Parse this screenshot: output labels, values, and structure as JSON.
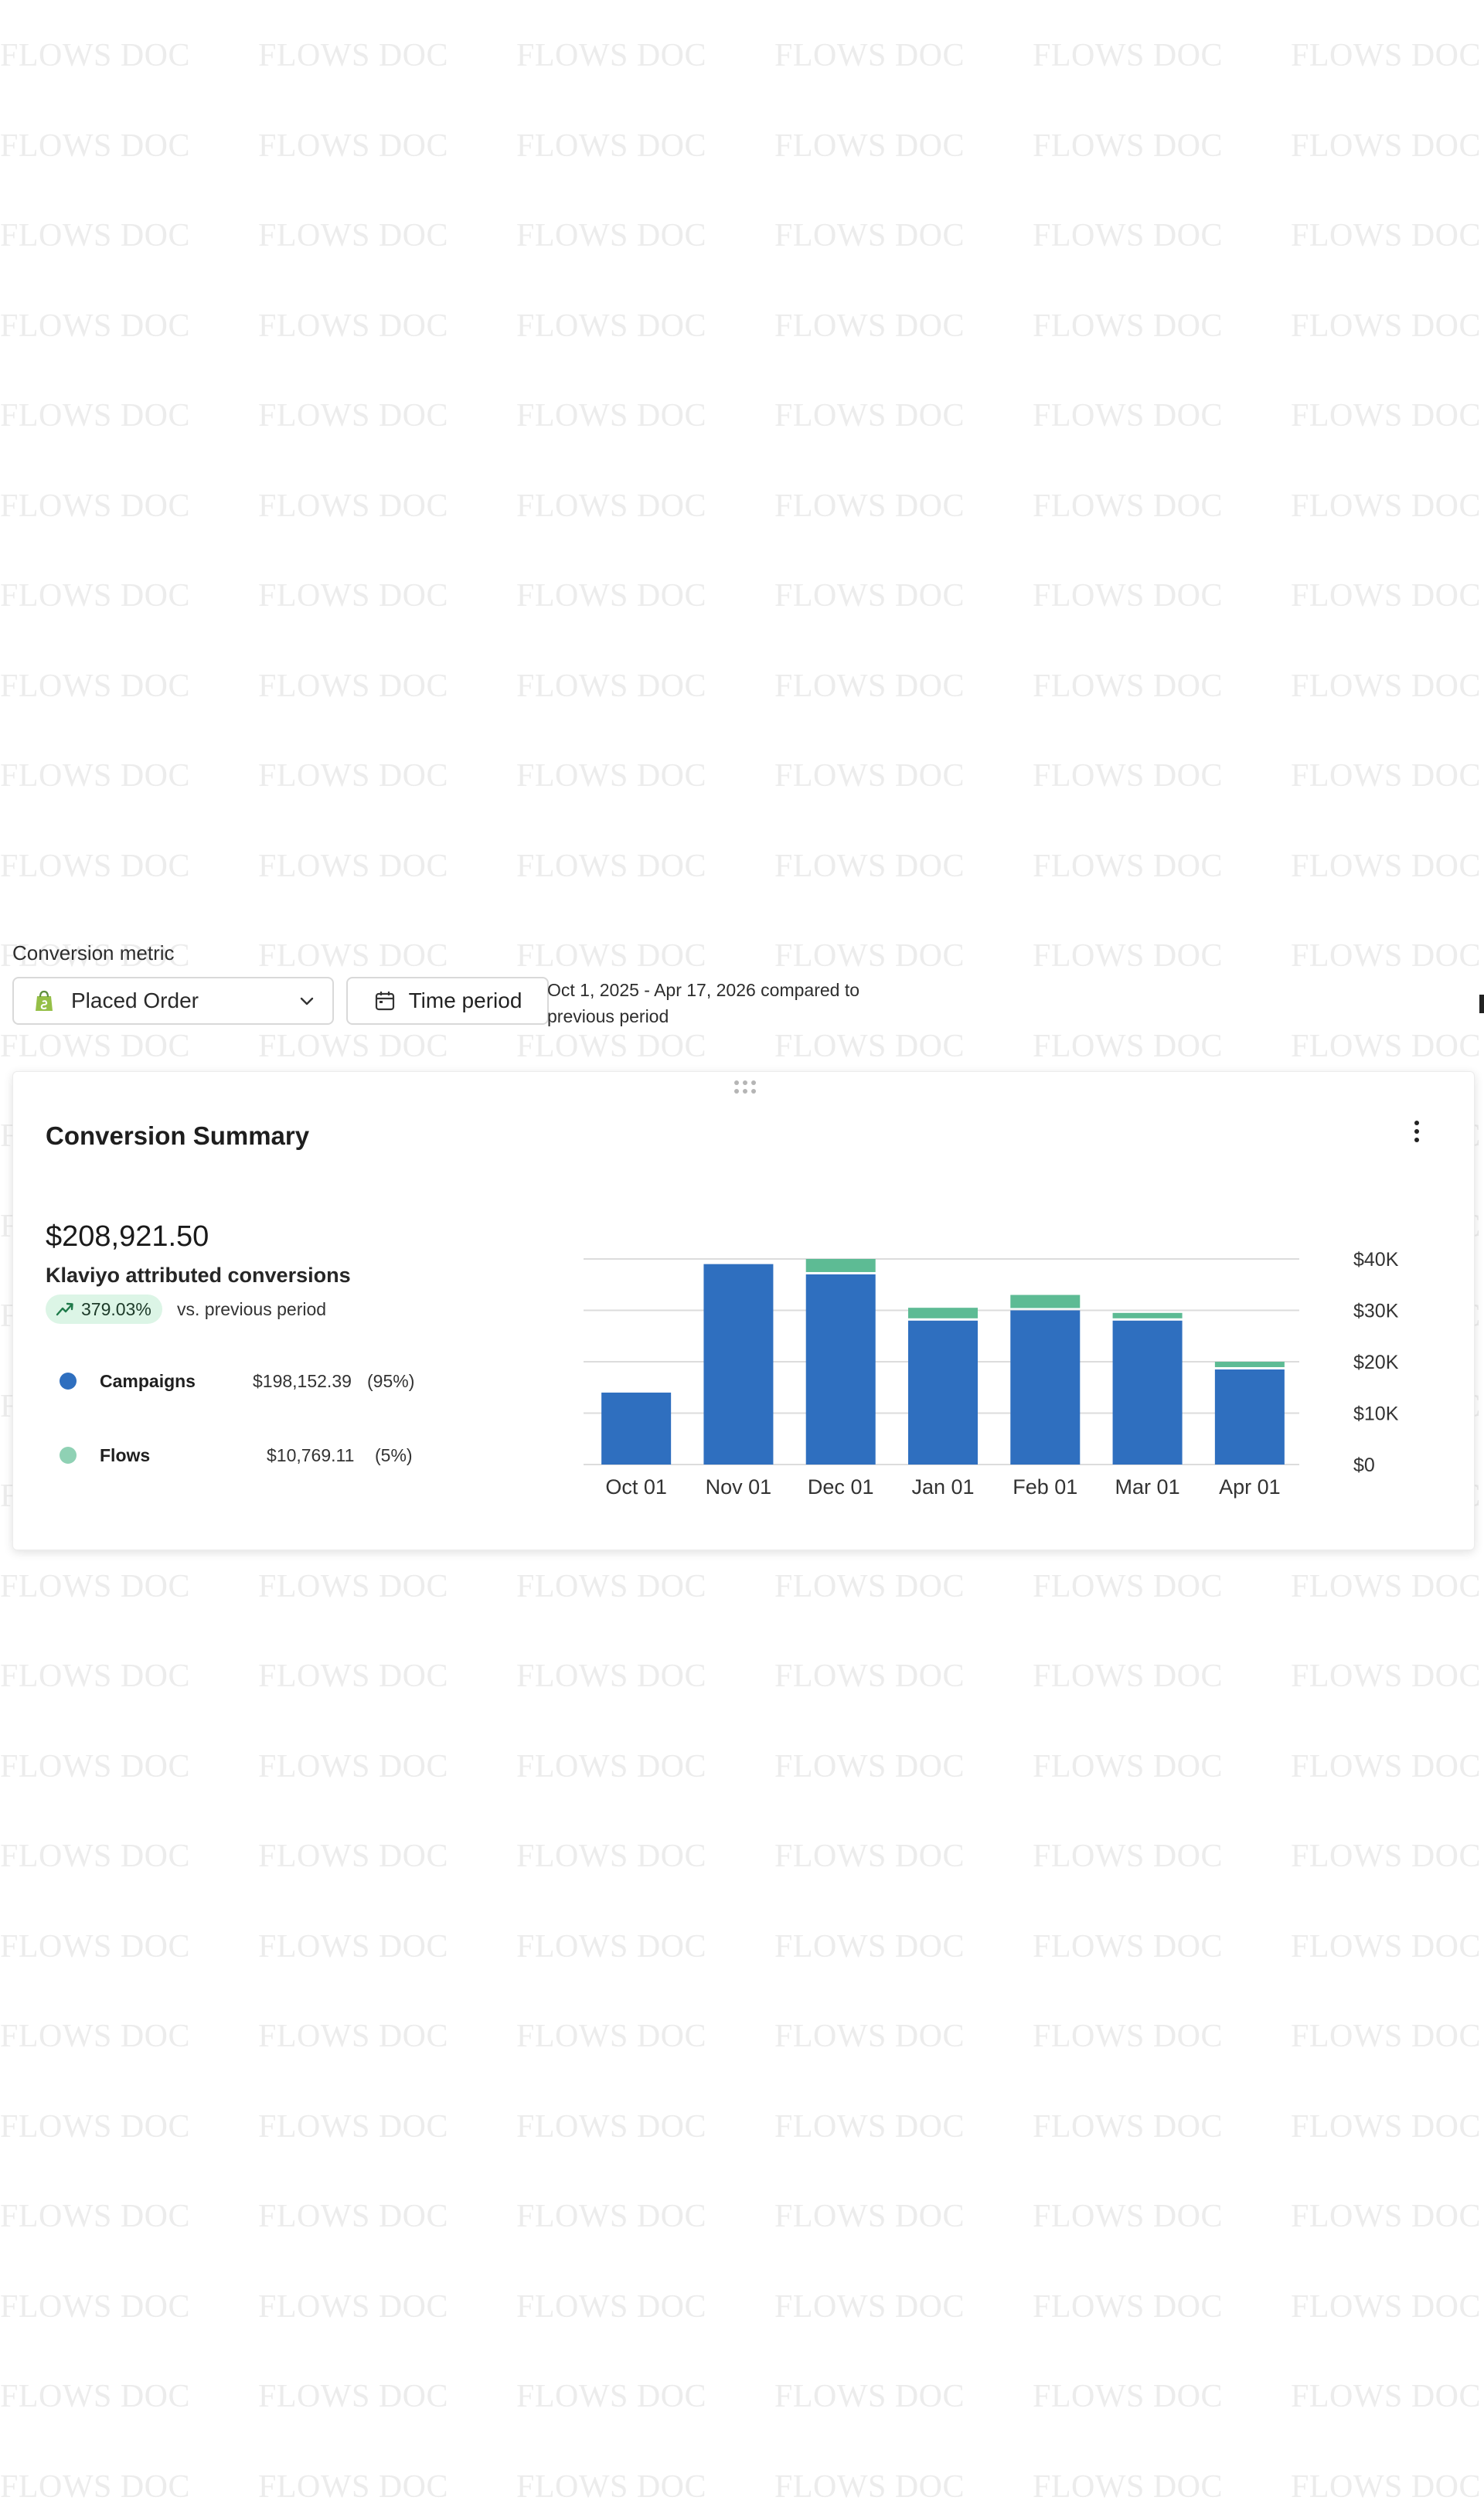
{
  "watermark": {
    "text": "FLOWS DOC"
  },
  "controls": {
    "metric_label": "Conversion metric",
    "metric_value": "Placed Order",
    "time_button_label": "Time period",
    "period_text": "Oct 1, 2025 - Apr 17, 2026 compared to previous period"
  },
  "card": {
    "title": "Conversion Summary",
    "total": "$208,921.50",
    "subtitle": "Klaviyo attributed conversions",
    "change_pct": "379.03%",
    "change_label": "vs. previous period",
    "legend": [
      {
        "name": "Campaigns",
        "amount": "$198,152.39",
        "share": "(95%)",
        "color": "#2f6fbf"
      },
      {
        "name": "Flows",
        "amount": "$10,769.11",
        "share": "(5%)",
        "color": "#8fd1b4"
      }
    ]
  },
  "chart_data": {
    "type": "bar",
    "stacked": true,
    "categories": [
      "Oct 01",
      "Nov 01",
      "Dec 01",
      "Jan 01",
      "Feb 01",
      "Mar 01",
      "Apr 01"
    ],
    "series": [
      {
        "name": "Campaigns",
        "color": "#2f6fbf",
        "values": [
          14000,
          39000,
          37000,
          28000,
          30000,
          28000,
          18500
        ]
      },
      {
        "name": "Flows",
        "color": "#5dbb94",
        "values": [
          0,
          0,
          3000,
          2500,
          3000,
          1500,
          1500
        ]
      }
    ],
    "y_ticks": [
      "$0",
      "$10K",
      "$20K",
      "$30K",
      "$40K"
    ],
    "y_tick_values": [
      0,
      10000,
      20000,
      30000,
      40000
    ],
    "ylim": [
      0,
      40000
    ],
    "y_axis_side": "right",
    "grid": true
  }
}
